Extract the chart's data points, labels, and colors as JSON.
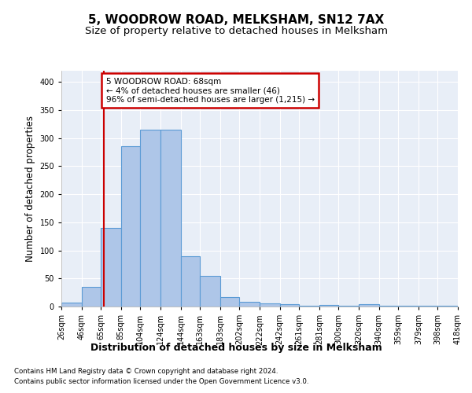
{
  "title": "5, WOODROW ROAD, MELKSHAM, SN12 7AX",
  "subtitle": "Size of property relative to detached houses in Melksham",
  "xlabel": "Distribution of detached houses by size in Melksham",
  "ylabel": "Number of detached properties",
  "bar_edges": [
    26,
    46,
    65,
    85,
    104,
    124,
    144,
    163,
    183,
    202,
    222,
    242,
    261,
    281,
    300,
    320,
    340,
    359,
    379,
    398,
    418
  ],
  "bar_heights": [
    7,
    35,
    140,
    285,
    315,
    315,
    90,
    55,
    17,
    9,
    5,
    4,
    2,
    3,
    1,
    4,
    1,
    1,
    1,
    2
  ],
  "bar_color": "#aec6e8",
  "bar_edge_color": "#5b9bd5",
  "property_size": 68,
  "vline_color": "#cc0000",
  "annotation_text": "5 WOODROW ROAD: 68sqm\n← 4% of detached houses are smaller (46)\n96% of semi-detached houses are larger (1,215) →",
  "annotation_box_color": "#ffffff",
  "annotation_box_edgecolor": "#cc0000",
  "ylim": [
    0,
    420
  ],
  "xlim": [
    26,
    418
  ],
  "plot_bg_color": "#e8eef7",
  "grid_color": "#ffffff",
  "footer_line1": "Contains HM Land Registry data © Crown copyright and database right 2024.",
  "footer_line2": "Contains public sector information licensed under the Open Government Licence v3.0.",
  "title_fontsize": 11,
  "subtitle_fontsize": 9.5,
  "tick_label_fontsize": 7,
  "ylabel_fontsize": 8.5,
  "xlabel_fontsize": 9
}
